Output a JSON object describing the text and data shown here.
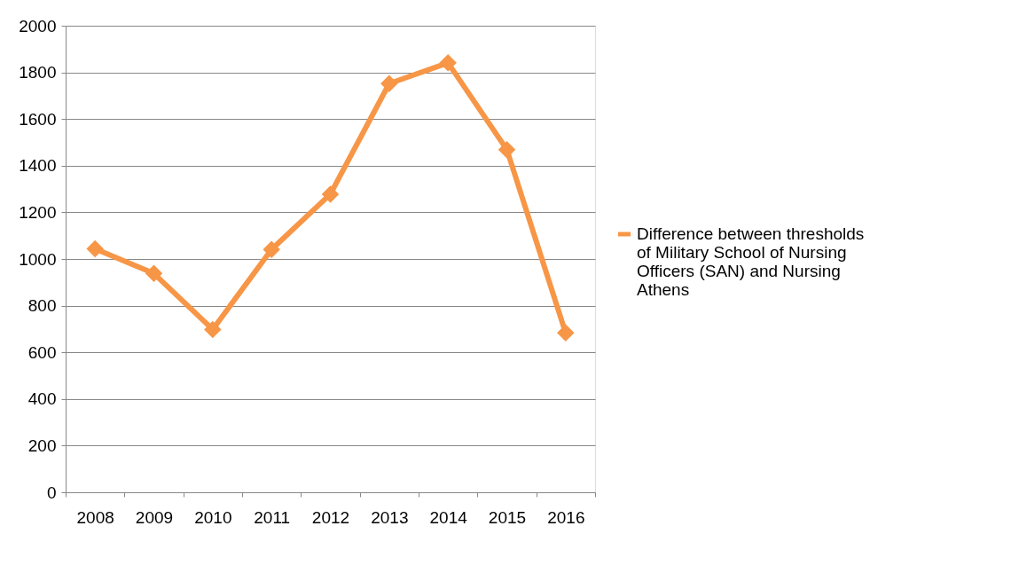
{
  "chart_data": {
    "type": "line",
    "categories": [
      "2008",
      "2009",
      "2010",
      "2011",
      "2012",
      "2013",
      "2014",
      "2015",
      "2016"
    ],
    "series": [
      {
        "name": "Difference between thresholds of Military School of Nursing Officers (SAN) and Nursing Athens",
        "color": "#f79646",
        "values": [
          1044,
          938,
          698,
          1041,
          1278,
          1752,
          1841,
          1469,
          683
        ]
      }
    ],
    "ylim": [
      0,
      2000
    ],
    "yticks": [
      0,
      200,
      400,
      600,
      800,
      1000,
      1200,
      1400,
      1600,
      1800,
      2000
    ],
    "grid": "y",
    "legend": "right",
    "marker": "diamond",
    "line_style": "solid"
  }
}
